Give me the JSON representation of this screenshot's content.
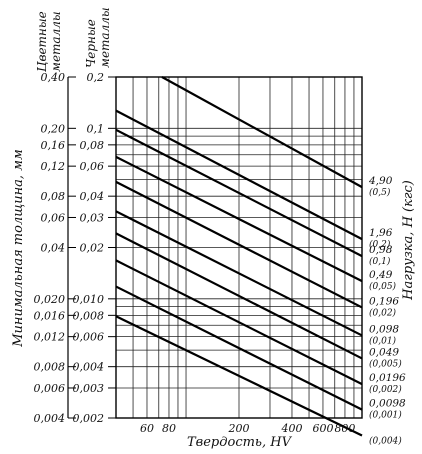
{
  "chart_data": {
    "type": "line",
    "scale": "log-log",
    "xlabel": "Твердость, HV",
    "ylabel": "Минимальная толщина, мм",
    "y2label": "Нагрузка, Н (кгс)",
    "col_headers": {
      "nonferrous": [
        "Цветные",
        "металлы"
      ],
      "ferrous": [
        "Черные",
        "металлы"
      ]
    },
    "x_ticks": [
      60,
      80,
      200,
      400,
      600,
      800
    ],
    "x_tick_labels": [
      "60",
      "80",
      "200",
      "400",
      "600",
      "800"
    ],
    "x_grid": [
      40,
      50,
      60,
      70,
      80,
      90,
      100,
      200,
      300,
      400,
      500,
      600,
      700,
      800,
      900,
      1000
    ],
    "xlim": [
      40,
      1000
    ],
    "y_ferrous_ticks": [
      0.2,
      0.1,
      0.08,
      0.06,
      0.04,
      0.03,
      0.02,
      0.01,
      0.008,
      0.006,
      0.004,
      0.003,
      0.002
    ],
    "y_ferrous_labels": [
      "0,2",
      "0,1",
      "0,08",
      "0,06",
      "0,04",
      "0,03",
      "0,02",
      "0,010",
      "0,008",
      "0,006",
      "0,004",
      "0,003",
      "0,002"
    ],
    "y_nonferrous_labels": [
      "0,40",
      "0,20",
      "0,16",
      "0,12",
      "0,08",
      "0,06",
      "0,04",
      "0,020",
      "0,016",
      "0,012",
      "0,008",
      "0,006",
      "0,004"
    ],
    "ylim_ferrous": [
      0.002,
      0.2
    ],
    "y_grid": [
      0.2,
      0.1,
      0.09,
      0.08,
      0.07,
      0.06,
      0.05,
      0.04,
      0.03,
      0.02,
      0.01,
      0.009,
      0.008,
      0.007,
      0.006,
      0.005,
      0.004,
      0.003,
      0.002
    ],
    "series": [
      {
        "name": "4,90",
        "kgf": "(0,5)",
        "points": [
          [
            73,
            0.2
          ],
          [
            1000,
            0.0452
          ]
        ]
      },
      {
        "name": "1,96",
        "kgf": "(0,2)",
        "points": [
          [
            40,
            0.127
          ],
          [
            1000,
            0.0224
          ]
        ]
      },
      {
        "name": "0,98",
        "kgf": "(0,1)",
        "points": [
          [
            40,
            0.098
          ],
          [
            1000,
            0.0178
          ]
        ]
      },
      {
        "name": "0,49",
        "kgf": "(0,05)",
        "points": [
          [
            40,
            0.068
          ],
          [
            1000,
            0.0127
          ]
        ]
      },
      {
        "name": "0,196",
        "kgf": "(0,02)",
        "points": [
          [
            40,
            0.0485
          ],
          [
            1000,
            0.0089
          ]
        ]
      },
      {
        "name": "0,098",
        "kgf": "(0,01)",
        "points": [
          [
            40,
            0.0326
          ],
          [
            1000,
            0.0061
          ]
        ]
      },
      {
        "name": "0,049",
        "kgf": "(0,005)",
        "points": [
          [
            40,
            0.0242
          ],
          [
            1000,
            0.00447
          ]
        ]
      },
      {
        "name": "0,0196",
        "kgf": "(0,002)",
        "points": [
          [
            40,
            0.0168
          ],
          [
            1000,
            0.00316
          ]
        ]
      },
      {
        "name": "0,0098",
        "kgf": "(0,001)",
        "points": [
          [
            40,
            0.0118
          ],
          [
            1000,
            0.00224
          ]
        ]
      },
      {
        "name": "",
        "kgf": "(0,004)",
        "points": [
          [
            40,
            0.0079
          ],
          [
            1000,
            0.00158
          ]
        ]
      }
    ],
    "grid": true
  }
}
